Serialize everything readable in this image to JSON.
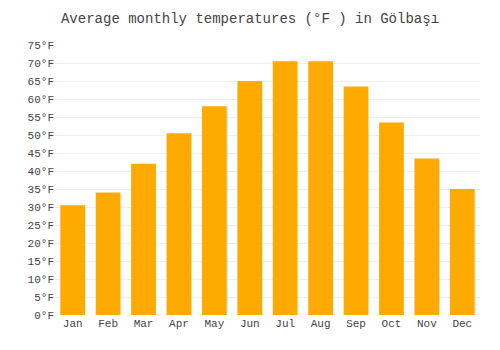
{
  "chart_data": {
    "type": "bar",
    "title": "Average monthly temperatures (°F ) in Gölbaşı",
    "categories": [
      "Jan",
      "Feb",
      "Mar",
      "Apr",
      "May",
      "Jun",
      "Jul",
      "Aug",
      "Sep",
      "Oct",
      "Nov",
      "Dec"
    ],
    "values": [
      30.5,
      34,
      42,
      50.5,
      58,
      65,
      70.5,
      70.5,
      63.5,
      53.5,
      43.5,
      35
    ],
    "color": "#FFAA00",
    "ylim": [
      0,
      75
    ],
    "yticks": [
      {
        "value": 0,
        "label": "0°F"
      },
      {
        "value": 5,
        "label": "5°F"
      },
      {
        "value": 10,
        "label": "10°F"
      },
      {
        "value": 15,
        "label": "15°F"
      },
      {
        "value": 20,
        "label": "20°F"
      },
      {
        "value": 25,
        "label": "25°F"
      },
      {
        "value": 30,
        "label": "30°F"
      },
      {
        "value": 35,
        "label": "35°F"
      },
      {
        "value": 40,
        "label": "40°F"
      },
      {
        "value": 45,
        "label": "45°F"
      },
      {
        "value": 50,
        "label": "50°F"
      },
      {
        "value": 55,
        "label": "55°F"
      },
      {
        "value": 60,
        "label": "60°F"
      },
      {
        "value": 65,
        "label": "65°F"
      },
      {
        "value": 70,
        "label": "70°F"
      },
      {
        "value": 75,
        "label": "75°F"
      }
    ],
    "grid": true
  }
}
